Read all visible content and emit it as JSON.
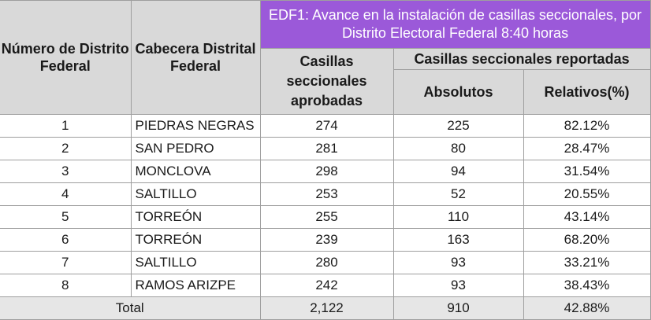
{
  "table": {
    "title": "EDF1: Avance en la instalación de casillas seccionales, por Distrito Electoral Federal 8:40 horas",
    "headers": {
      "distrito": "Número de Distrito Federal",
      "cabecera": "Cabecera Distrital Federal",
      "aprobadas": "Casillas seccionales aprobadas",
      "reportadas": "Casillas seccionales reportadas",
      "absolutos": "Absolutos",
      "relativos": "Relativos(%)"
    },
    "rows": [
      {
        "distrito": "1",
        "cabecera": "PIEDRAS NEGRAS",
        "aprobadas": "274",
        "absolutos": "225",
        "relativos": "82.12%"
      },
      {
        "distrito": "2",
        "cabecera": "SAN PEDRO",
        "aprobadas": "281",
        "absolutos": "80",
        "relativos": "28.47%"
      },
      {
        "distrito": "3",
        "cabecera": "MONCLOVA",
        "aprobadas": "298",
        "absolutos": "94",
        "relativos": "31.54%"
      },
      {
        "distrito": "4",
        "cabecera": "SALTILLO",
        "aprobadas": "253",
        "absolutos": "52",
        "relativos": "20.55%"
      },
      {
        "distrito": "5",
        "cabecera": "TORREÓN",
        "aprobadas": "255",
        "absolutos": "110",
        "relativos": "43.14%"
      },
      {
        "distrito": "6",
        "cabecera": "TORREÓN",
        "aprobadas": "239",
        "absolutos": "163",
        "relativos": "68.20%"
      },
      {
        "distrito": "7",
        "cabecera": "SALTILLO",
        "aprobadas": "280",
        "absolutos": "93",
        "relativos": "33.21%"
      },
      {
        "distrito": "8",
        "cabecera": "RAMOS ARIZPE",
        "aprobadas": "242",
        "absolutos": "93",
        "relativos": "38.43%"
      }
    ],
    "total": {
      "label": "Total",
      "aprobadas": "2,122",
      "absolutos": "910",
      "relativos": "42.88%"
    }
  }
}
